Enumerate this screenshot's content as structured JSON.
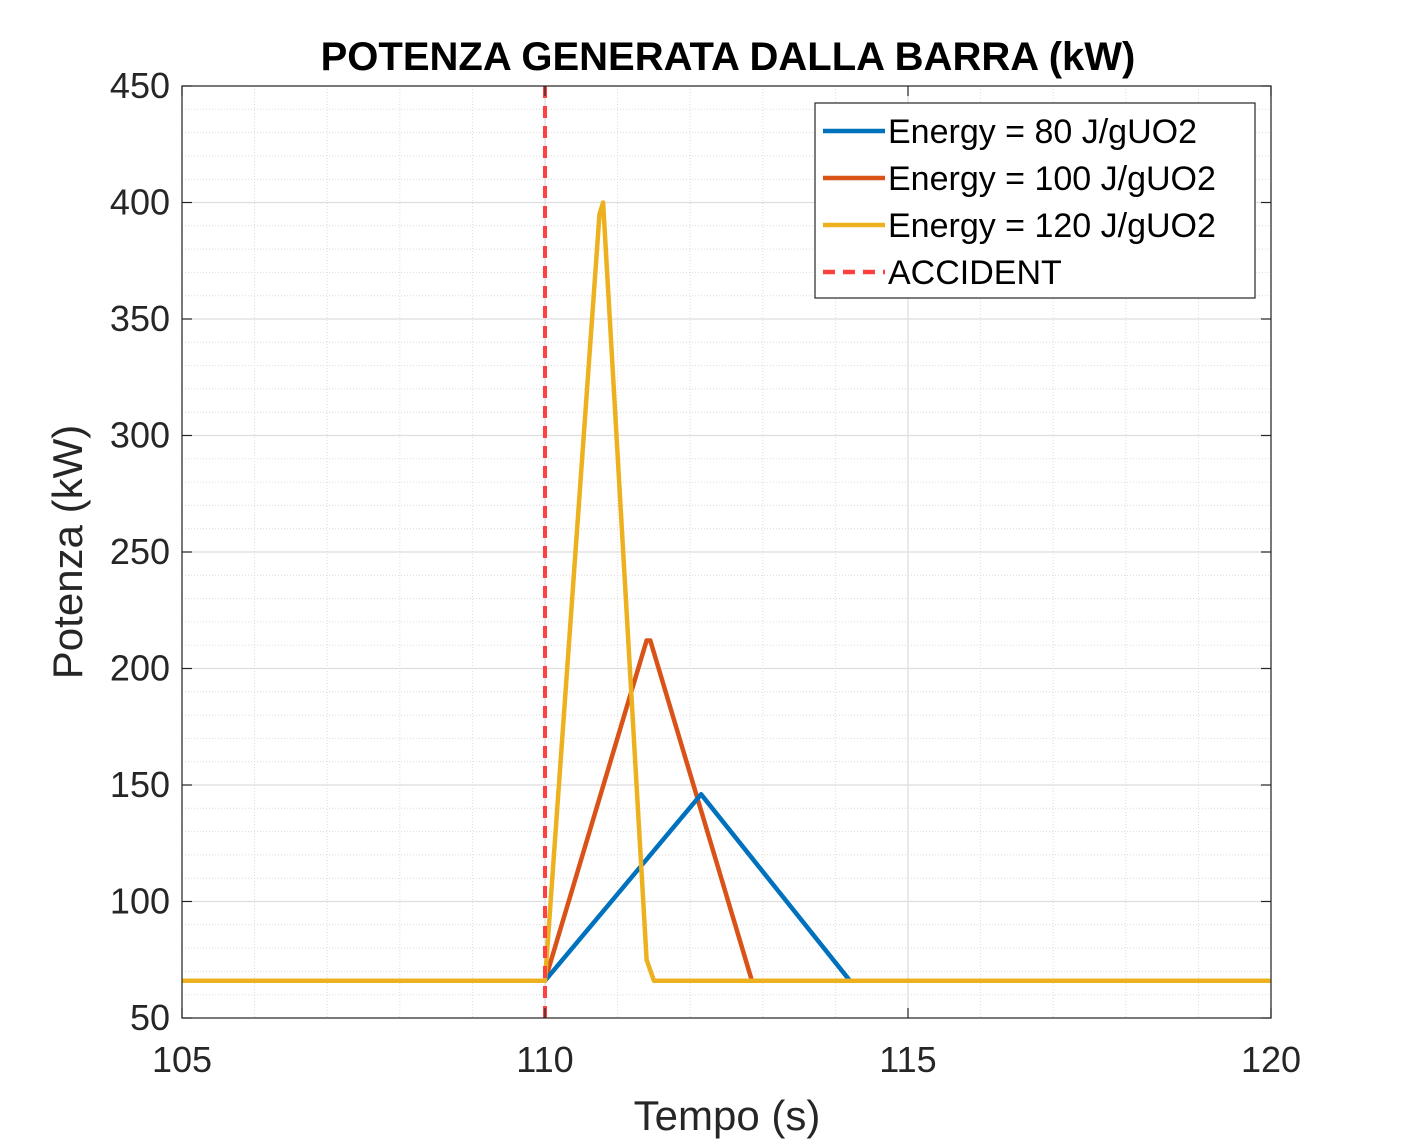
{
  "chart_data": {
    "type": "line",
    "title": "POTENZA GENERATA DALLA BARRA (kW)",
    "xlabel": "Tempo (s)",
    "ylabel": "Potenza (kW)",
    "xlim": [
      105,
      120
    ],
    "ylim": [
      50,
      450
    ],
    "xticks": [
      105,
      110,
      115,
      120
    ],
    "yticks": [
      50,
      100,
      150,
      200,
      250,
      300,
      350,
      400,
      450
    ],
    "xtick_labels": [
      "105",
      "110",
      "115",
      "120"
    ],
    "ytick_labels": [
      "50",
      "100",
      "150",
      "200",
      "250",
      "300",
      "350",
      "400",
      "450"
    ],
    "grid": true,
    "minor_grid": true,
    "legend_location": "top-right",
    "series": [
      {
        "name": "Energy = 80 J/gUO2",
        "color": "#0072BD",
        "style": "solid",
        "x": [
          105,
          110,
          112.15,
          114.2,
          120
        ],
        "y": [
          66,
          66,
          146,
          66,
          66
        ]
      },
      {
        "name": "Energy = 100 J/gUO2",
        "color": "#D95319",
        "style": "solid",
        "x": [
          105,
          110,
          111.4,
          111.45,
          112.85,
          120
        ],
        "y": [
          66,
          66,
          212,
          212,
          66,
          66
        ]
      },
      {
        "name": "Energy = 120 J/gUO2",
        "color": "#EDB120",
        "style": "solid",
        "x": [
          105,
          110,
          110.75,
          110.8,
          111.4,
          111.5,
          120
        ],
        "y": [
          66,
          66,
          395,
          400,
          75,
          66,
          66
        ]
      },
      {
        "name": "ACCIDENT",
        "color": "#FF4040",
        "style": "dashed",
        "x": [
          110,
          110
        ],
        "y": [
          50,
          450
        ]
      }
    ]
  }
}
